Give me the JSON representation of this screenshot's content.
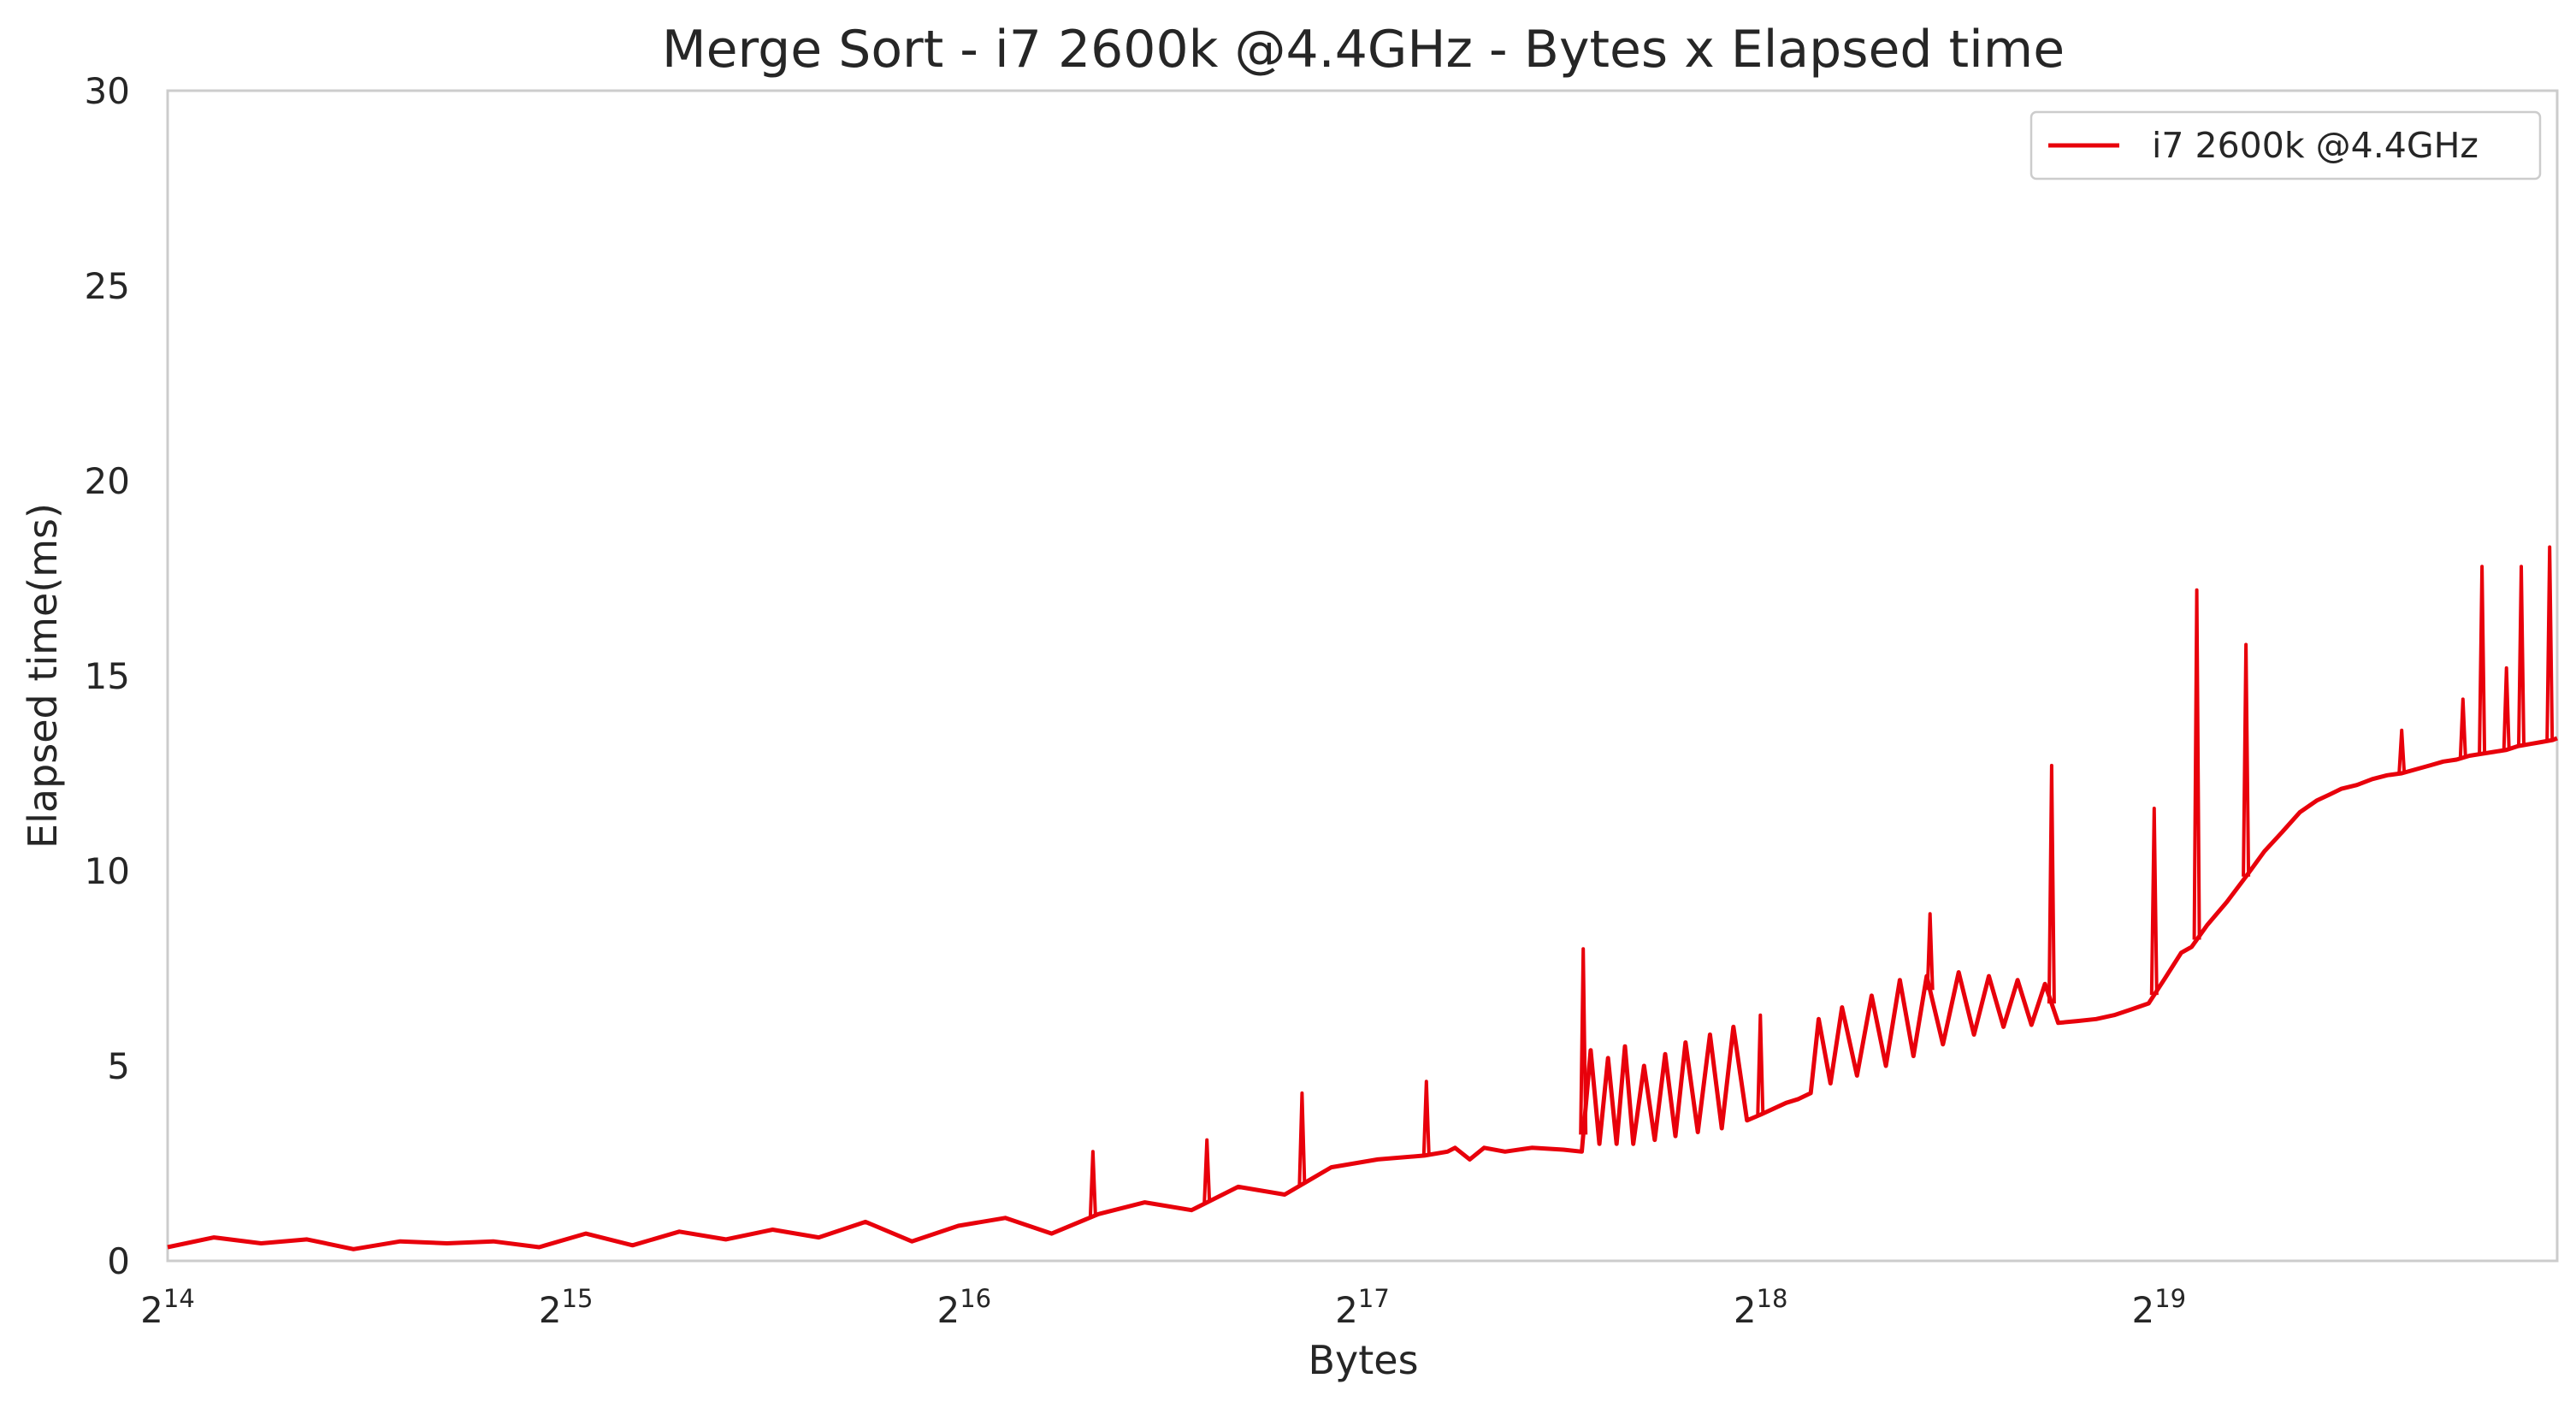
{
  "chart_data": {
    "type": "line",
    "title": "Merge Sort - i7 2600k @4.4GHz - Bytes x Elapsed time",
    "xlabel": "Bytes",
    "ylabel": "Elapsed time(ms)",
    "xscale": "log2",
    "xlim": [
      16384,
      1048576
    ],
    "ylim": [
      0,
      30
    ],
    "grid": false,
    "legend_position": "top-right",
    "x_ticks": [
      {
        "base": "2",
        "exp": "14",
        "value": 16384
      },
      {
        "base": "2",
        "exp": "15",
        "value": 32768
      },
      {
        "base": "2",
        "exp": "16",
        "value": 65536
      },
      {
        "base": "2",
        "exp": "17",
        "value": 131072
      },
      {
        "base": "2",
        "exp": "18",
        "value": 262144
      },
      {
        "base": "2",
        "exp": "19",
        "value": 524288
      }
    ],
    "y_ticks": [
      "0",
      "5",
      "10",
      "15",
      "20",
      "25",
      "30"
    ],
    "series": [
      {
        "name": "i7 2600k @4.4GHz",
        "color": "#e8000b",
        "x": [
          16384,
          17760,
          19280,
          20880,
          22640,
          24560,
          26640,
          28880,
          31280,
          33920,
          36800,
          39920,
          43280,
          46960,
          50880,
          55200,
          59840,
          64880,
          70400,
          76320,
          82800,
          89760,
          97360,
          105600,
          114480,
          124160,
          134640,
          146000,
          152000,
          154000,
          158000,
          162000,
          168000,
          176000,
          186000,
          192000,
          195000,
          198000,
          201000,
          204000,
          207000,
          210000,
          214000,
          218000,
          222000,
          226000,
          230000,
          235000,
          240000,
          245000,
          250000,
          256000,
          262144,
          268000,
          274000,
          280000,
          286000,
          290000,
          296000,
          302000,
          310000,
          318000,
          326000,
          334000,
          342000,
          350000,
          360000,
          370000,
          380000,
          390000,
          400000,
          410000,
          420000,
          430000,
          440000,
          455000,
          470000,
          485000,
          500000,
          515000,
          530000,
          545000,
          555000,
          570000,
          590000,
          610000,
          630000,
          650000,
          670000,
          690000,
          705000,
          720000,
          740000,
          760000,
          780000,
          800000,
          820000,
          840000,
          860000,
          880000,
          900000,
          920000,
          940000,
          960000,
          980000,
          1000000,
          1020000,
          1040000,
          1048576
        ],
        "values": [
          0.35,
          0.6,
          0.45,
          0.55,
          0.3,
          0.5,
          0.45,
          0.5,
          0.35,
          0.7,
          0.4,
          0.75,
          0.55,
          0.8,
          0.6,
          1.0,
          0.5,
          0.9,
          1.1,
          0.7,
          1.2,
          1.5,
          1.3,
          1.9,
          1.7,
          2.4,
          2.6,
          2.7,
          2.8,
          2.9,
          2.6,
          2.9,
          2.8,
          2.9,
          2.85,
          2.8,
          5.4,
          3.0,
          5.2,
          3.0,
          5.5,
          3.0,
          5.0,
          3.1,
          5.3,
          3.2,
          5.6,
          3.3,
          5.8,
          3.4,
          6.0,
          3.6,
          3.75,
          3.9,
          4.05,
          4.15,
          4.3,
          6.2,
          4.55,
          6.5,
          4.75,
          6.8,
          5.0,
          7.2,
          5.25,
          7.3,
          5.55,
          7.4,
          5.8,
          7.3,
          6.0,
          7.2,
          6.05,
          7.1,
          6.1,
          6.15,
          6.2,
          6.3,
          6.45,
          6.6,
          7.25,
          7.9,
          8.05,
          8.6,
          9.2,
          9.85,
          10.5,
          11.0,
          11.5,
          11.8,
          11.95,
          12.1,
          12.2,
          12.35,
          12.45,
          12.5,
          12.6,
          12.7,
          12.8,
          12.85,
          12.95,
          13.0,
          13.05,
          13.1,
          13.2,
          13.25,
          13.3,
          13.35,
          13.4
        ]
      }
    ],
    "spikes": [
      {
        "x": 82000,
        "y": 2.8
      },
      {
        "x": 100000,
        "y": 3.1
      },
      {
        "x": 118000,
        "y": 4.3
      },
      {
        "x": 146500,
        "y": 4.6
      },
      {
        "x": 192500,
        "y": 8.0
      },
      {
        "x": 262000,
        "y": 6.3
      },
      {
        "x": 352000,
        "y": 8.9
      },
      {
        "x": 435000,
        "y": 12.7
      },
      {
        "x": 520000,
        "y": 11.6
      },
      {
        "x": 560000,
        "y": 17.2
      },
      {
        "x": 610000,
        "y": 15.8
      },
      {
        "x": 800000,
        "y": 13.6
      },
      {
        "x": 890000,
        "y": 14.4
      },
      {
        "x": 920000,
        "y": 17.8
      },
      {
        "x": 960000,
        "y": 15.2
      },
      {
        "x": 985000,
        "y": 17.8
      },
      {
        "x": 1035000,
        "y": 18.3
      }
    ]
  }
}
